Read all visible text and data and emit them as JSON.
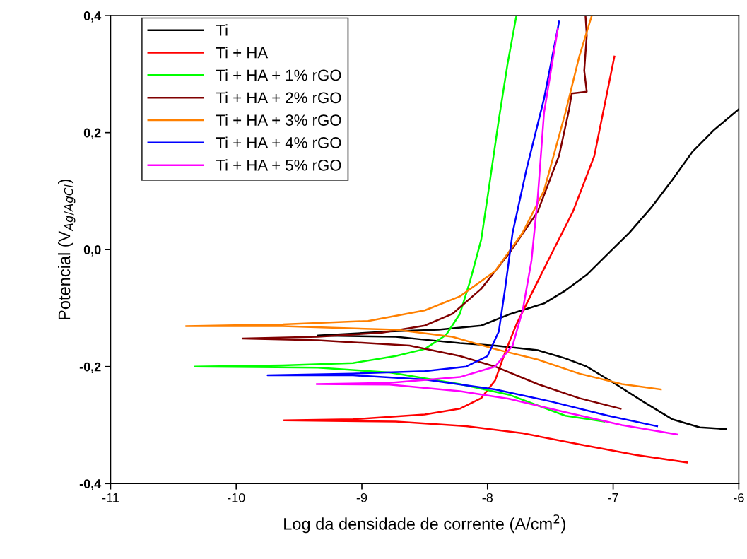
{
  "chart_data": {
    "type": "line",
    "xlabel": "Log da densidade de corrente (A/cm$^{2}$)",
    "ylabel": "Potencial (V$_{Ag/AgCl}$)",
    "xlim": [
      -11,
      -6
    ],
    "xticks": [
      -11,
      -10,
      -9,
      -8,
      -7,
      -6
    ],
    "ylim": [
      -0.4,
      0.4
    ],
    "yticks": [
      {
        "value": -0.4,
        "label": "-0,4"
      },
      {
        "value": -0.2,
        "label": "-0,2"
      },
      {
        "value": 0,
        "label": "0,0"
      },
      {
        "value": 0.2,
        "label": "0,2"
      },
      {
        "value": 0.4,
        "label": "0,4"
      }
    ],
    "legend": "top left",
    "grid": false,
    "marker": "none",
    "line_style": "solid",
    "series": [
      {
        "name": "Ti",
        "color": "#000000",
        "x": [
          -6.1,
          -6.31,
          -6.53,
          -6.76,
          -6.98,
          -7.21,
          -7.38,
          -7.6,
          -7.94,
          -8.22,
          -8.5,
          -8.73,
          -9.35,
          -8.78,
          -8.39,
          -8.05,
          -7.83,
          -7.55,
          -7.38,
          -7.21,
          -7.04,
          -6.87,
          -6.7,
          -6.53,
          -6.37,
          -6.2,
          -6.0
        ],
        "values": [
          -0.307,
          -0.304,
          -0.29,
          -0.26,
          -0.23,
          -0.2,
          -0.186,
          -0.172,
          -0.164,
          -0.16,
          -0.154,
          -0.149,
          -0.147,
          -0.14,
          -0.137,
          -0.13,
          -0.111,
          -0.092,
          -0.07,
          -0.043,
          -0.007,
          0.029,
          0.071,
          0.119,
          0.167,
          0.204,
          0.24
        ]
      },
      {
        "name": "Ti + HA",
        "color": "#ff0000",
        "x": [
          -6.41,
          -6.82,
          -7.27,
          -7.72,
          -8.17,
          -8.73,
          -9.62,
          -9.07,
          -8.5,
          -8.22,
          -8.05,
          -7.94,
          -7.86,
          -7.77,
          -7.66,
          -7.49,
          -7.32,
          -7.15,
          -6.99
        ],
        "values": [
          -0.364,
          -0.351,
          -0.333,
          -0.314,
          -0.302,
          -0.294,
          -0.292,
          -0.29,
          -0.282,
          -0.272,
          -0.254,
          -0.224,
          -0.176,
          -0.128,
          -0.08,
          -0.007,
          0.065,
          0.16,
          0.33
        ]
      },
      {
        "name": "Ti + HA + 1% rGO",
        "color": "#00ff00",
        "x": [
          -7.07,
          -7.38,
          -7.83,
          -8.22,
          -8.78,
          -9.35,
          -10.33,
          -9.63,
          -9.07,
          -8.73,
          -8.5,
          -8.33,
          -8.22,
          -8.14,
          -8.05,
          -8.0,
          -7.91,
          -7.84,
          -7.77
        ],
        "values": [
          -0.294,
          -0.284,
          -0.248,
          -0.23,
          -0.21,
          -0.202,
          -0.2,
          -0.198,
          -0.194,
          -0.182,
          -0.17,
          -0.146,
          -0.11,
          -0.055,
          0.017,
          0.089,
          0.222,
          0.318,
          0.4
        ]
      },
      {
        "name": "Ti + HA + 2% rGO",
        "color": "#800000",
        "x": [
          -6.94,
          -7.27,
          -7.6,
          -7.94,
          -8.22,
          -8.62,
          -9.35,
          -9.95,
          -9.35,
          -8.84,
          -8.5,
          -8.28,
          -8.05,
          -7.83,
          -7.6,
          -7.43,
          -7.35,
          -7.33,
          -7.21,
          -7.23,
          -7.21,
          -7.22
        ],
        "values": [
          -0.272,
          -0.254,
          -0.23,
          -0.2,
          -0.182,
          -0.164,
          -0.155,
          -0.152,
          -0.149,
          -0.142,
          -0.13,
          -0.11,
          -0.067,
          -0.007,
          0.065,
          0.161,
          0.24,
          0.267,
          0.27,
          0.306,
          0.366,
          0.4
        ]
      },
      {
        "name": "Ti + HA + 3% rGO",
        "color": "#ff8000",
        "x": [
          -6.62,
          -6.93,
          -7.27,
          -7.6,
          -7.94,
          -8.28,
          -8.73,
          -9.63,
          -10.4,
          -9.63,
          -8.95,
          -8.5,
          -8.22,
          -7.94,
          -7.72,
          -7.55,
          -7.38,
          -7.27,
          -7.17
        ],
        "values": [
          -0.239,
          -0.23,
          -0.212,
          -0.188,
          -0.17,
          -0.149,
          -0.137,
          -0.131,
          -0.131,
          -0.128,
          -0.122,
          -0.104,
          -0.08,
          -0.037,
          0.029,
          0.101,
          0.234,
          0.33,
          0.4
        ]
      },
      {
        "name": "Ti + HA + 4% rGO",
        "color": "#0000ff",
        "x": [
          -6.65,
          -7.04,
          -7.49,
          -7.94,
          -8.5,
          -9.07,
          -9.75,
          -9.07,
          -8.5,
          -8.17,
          -8.0,
          -7.91,
          -7.86,
          -7.8,
          -7.69,
          -7.55,
          -7.43
        ],
        "values": [
          -0.302,
          -0.284,
          -0.26,
          -0.239,
          -0.222,
          -0.215,
          -0.215,
          -0.212,
          -0.208,
          -0.2,
          -0.182,
          -0.14,
          -0.067,
          0.029,
          0.137,
          0.258,
          0.39
        ]
      },
      {
        "name": "Ti + HA + 5% rGO",
        "color": "#ff00ff",
        "x": [
          -6.49,
          -6.93,
          -7.38,
          -7.83,
          -8.22,
          -8.78,
          -9.36,
          -8.78,
          -8.22,
          -7.94,
          -7.8,
          -7.72,
          -7.65,
          -7.6,
          -7.55,
          -7.44
        ],
        "values": [
          -0.316,
          -0.3,
          -0.278,
          -0.255,
          -0.242,
          -0.231,
          -0.23,
          -0.228,
          -0.218,
          -0.2,
          -0.164,
          -0.104,
          -0.019,
          0.089,
          0.234,
          0.378
        ]
      }
    ]
  }
}
